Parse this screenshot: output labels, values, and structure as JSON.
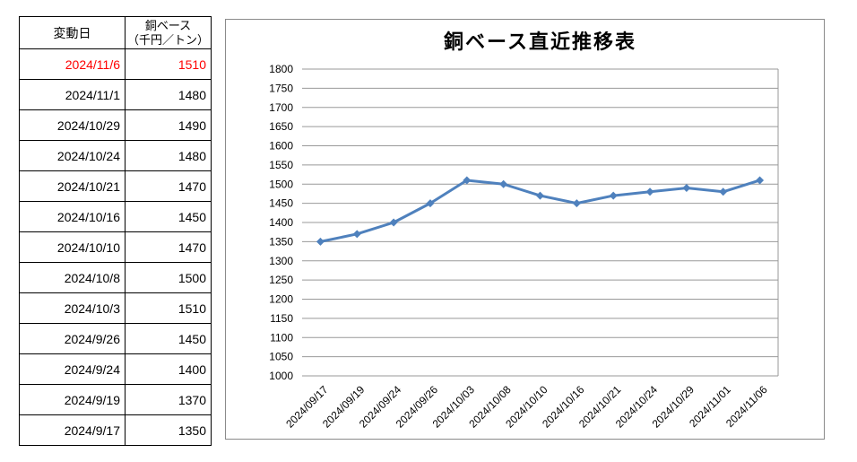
{
  "table": {
    "headers": {
      "date": "変動日",
      "value_line1": "銅ベース",
      "value_line2": "（千円／トン）"
    },
    "highlight_color": "#FF0000",
    "rows": [
      {
        "date": "2024/11/6",
        "value": "1510",
        "highlight": true
      },
      {
        "date": "2024/11/1",
        "value": "1480",
        "highlight": false
      },
      {
        "date": "2024/10/29",
        "value": "1490",
        "highlight": false
      },
      {
        "date": "2024/10/24",
        "value": "1480",
        "highlight": false
      },
      {
        "date": "2024/10/21",
        "value": "1470",
        "highlight": false
      },
      {
        "date": "2024/10/16",
        "value": "1450",
        "highlight": false
      },
      {
        "date": "2024/10/10",
        "value": "1470",
        "highlight": false
      },
      {
        "date": "2024/10/8",
        "value": "1500",
        "highlight": false
      },
      {
        "date": "2024/10/3",
        "value": "1510",
        "highlight": false
      },
      {
        "date": "2024/9/26",
        "value": "1450",
        "highlight": false
      },
      {
        "date": "2024/9/24",
        "value": "1400",
        "highlight": false
      },
      {
        "date": "2024/9/19",
        "value": "1370",
        "highlight": false
      },
      {
        "date": "2024/9/17",
        "value": "1350",
        "highlight": false
      }
    ]
  },
  "chart_data": {
    "type": "line",
    "title": "銅ベース直近推移表",
    "categories": [
      "2024/09/17",
      "2024/09/19",
      "2024/09/24",
      "2024/09/26",
      "2024/10/03",
      "2024/10/08",
      "2024/10/10",
      "2024/10/16",
      "2024/10/21",
      "2024/10/24",
      "2024/10/29",
      "2024/11/01",
      "2024/11/06"
    ],
    "series": [
      {
        "name": "銅ベース",
        "values": [
          1350,
          1370,
          1400,
          1450,
          1510,
          1500,
          1470,
          1450,
          1470,
          1480,
          1490,
          1480,
          1510
        ],
        "color": "#4F81BD"
      }
    ],
    "xlabel": "",
    "ylabel": "",
    "ylim": [
      1000,
      1800
    ],
    "ytick_step": 50,
    "grid": true,
    "gridline_color": "#999999",
    "marker": "diamond",
    "legend": "none",
    "x_label_rotation": -45
  }
}
